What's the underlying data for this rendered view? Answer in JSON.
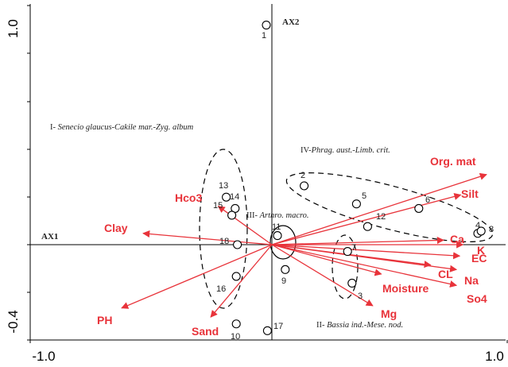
{
  "chart_data": {
    "type": "scatter",
    "title": "",
    "xlabel": "AX1",
    "ylabel": "AX2",
    "xlim": [
      -1.0,
      1.0
    ],
    "ylim": [
      -0.4,
      1.0
    ],
    "x_ticks": [
      {
        "value": -1.0,
        "label": "-1.0"
      },
      {
        "value": 1.0,
        "label": "1.0"
      }
    ],
    "y_ticks": [
      {
        "value": 1.0,
        "label": "1.0"
      },
      {
        "value": -0.4,
        "label": "-0.4"
      }
    ],
    "grid": false,
    "sites": [
      {
        "label": "1",
        "x": -0.05,
        "y": 0.97
      },
      {
        "label": "2",
        "x": 0.29,
        "y": 0.26
      },
      {
        "label": "3",
        "x": 0.72,
        "y": -0.17
      },
      {
        "label": "4",
        "x": 1.85,
        "y": 0.05
      },
      {
        "label": "5",
        "x": 0.76,
        "y": 0.18
      },
      {
        "label": "6",
        "x": 1.32,
        "y": 0.16
      },
      {
        "label": "7",
        "x": 0.68,
        "y": -0.03
      },
      {
        "label": "8",
        "x": 1.88,
        "y": 0.06
      },
      {
        "label": "9",
        "x": 0.12,
        "y": -0.11
      },
      {
        "label": "10",
        "x": -0.32,
        "y": -0.35
      },
      {
        "label": "11",
        "x": 0.05,
        "y": 0.04
      },
      {
        "label": "12",
        "x": 0.86,
        "y": 0.08
      },
      {
        "label": "13",
        "x": -0.41,
        "y": 0.21
      },
      {
        "label": "14",
        "x": -0.33,
        "y": 0.16
      },
      {
        "label": "15",
        "x": -0.36,
        "y": 0.13
      },
      {
        "label": "16",
        "x": -0.32,
        "y": -0.14
      },
      {
        "label": "17",
        "x": -0.04,
        "y": -0.38
      },
      {
        "label": "18",
        "x": -0.31,
        "y": 0.0
      }
    ],
    "variables": [
      {
        "name": "Org. mat",
        "x": 2.0,
        "y": 0.31
      },
      {
        "name": "Silt",
        "x": 1.76,
        "y": 0.22
      },
      {
        "name": "Hco3",
        "x": -0.5,
        "y": 0.17
      },
      {
        "name": "Clay",
        "x": -1.2,
        "y": 0.05
      },
      {
        "name": "Ca",
        "x": 1.6,
        "y": 0.02
      },
      {
        "name": "K",
        "x": 1.78,
        "y": 0.0
      },
      {
        "name": "EC",
        "x": 1.75,
        "y": -0.05
      },
      {
        "name": "CL",
        "x": 1.48,
        "y": -0.09
      },
      {
        "name": "Na",
        "x": 1.72,
        "y": -0.11
      },
      {
        "name": "So4",
        "x": 1.72,
        "y": -0.18
      },
      {
        "name": "Moisture",
        "x": 1.02,
        "y": -0.13
      },
      {
        "name": "Mg",
        "x": 0.94,
        "y": -0.27
      },
      {
        "name": "PH",
        "x": -1.4,
        "y": -0.28
      },
      {
        "name": "Sand",
        "x": -0.57,
        "y": -0.32
      }
    ],
    "groups": [
      {
        "numeral": "I-",
        "name": "Senecio glaucus-Cakile mar.-Zyg. album"
      },
      {
        "numeral": "II-",
        "name": "Bassia ind.-Mese. nod."
      },
      {
        "numeral": "III-",
        "name": "Arthro. macro."
      },
      {
        "numeral": "IV-",
        "name": "Phrag. aust.-Limb. crit."
      }
    ],
    "colors": {
      "vectors": "#e8333a",
      "sites": "#000000",
      "axes": "#000000"
    }
  }
}
